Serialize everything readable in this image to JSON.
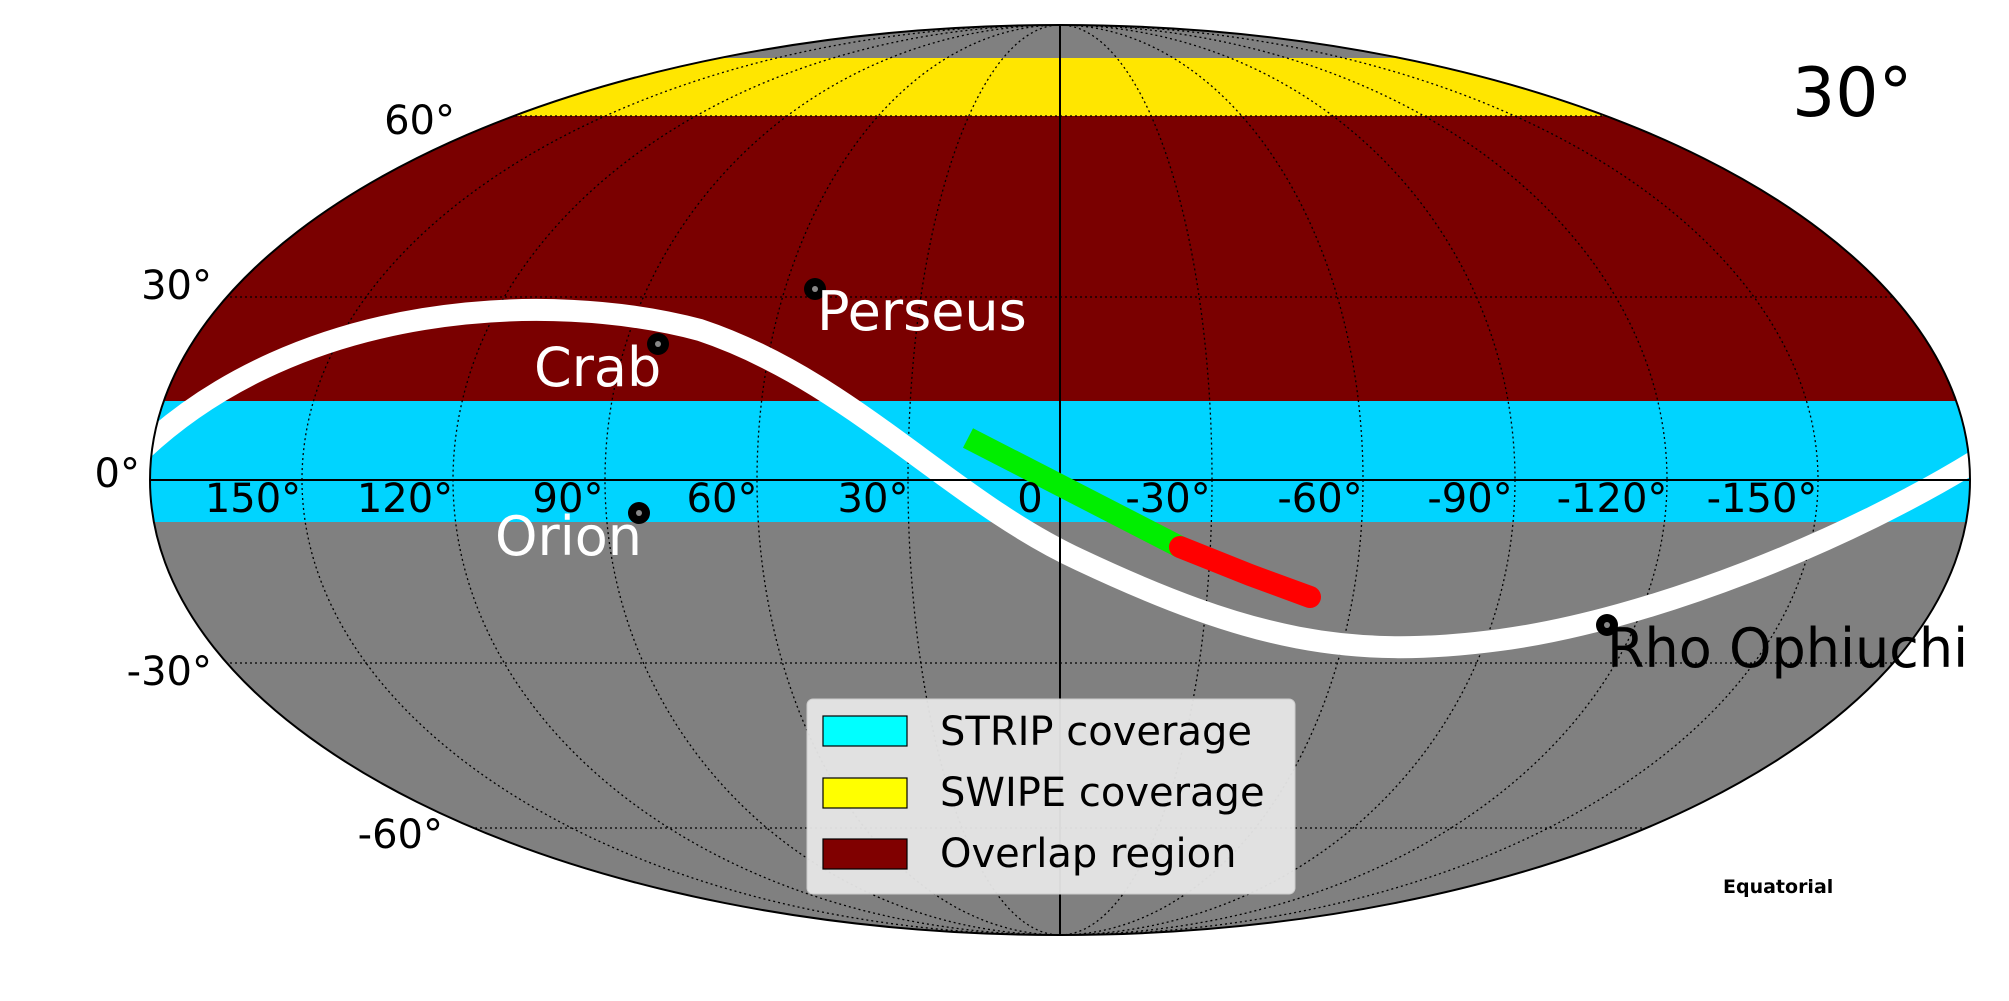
{
  "map": {
    "corner_label": "30°",
    "projection_label": "Equatorial",
    "colors": {
      "background_sky": "#808080",
      "strip": "#00d4ff",
      "swipe": "#ffe600",
      "overlap": "#7a0000",
      "galactic_plane": "#ffffff",
      "track_green": "#00ee00",
      "track_red": "#ff0000",
      "source_marker": "#000000",
      "grid": "#000000"
    },
    "lat_labels": [
      "60°",
      "30°",
      "0°",
      "-30°",
      "-60°"
    ],
    "lon_labels": [
      "150°",
      "120°",
      "90°",
      "60°",
      "30°",
      "0",
      "-30°",
      "-60°",
      "-90°",
      "-120°",
      "-150°"
    ],
    "sources": [
      {
        "name": "Perseus",
        "color": "#ffffff"
      },
      {
        "name": "Crab",
        "color": "#ffffff"
      },
      {
        "name": "Orion",
        "color": "#ffffff"
      },
      {
        "name": "Rho Ophiuchi",
        "color": "#000000"
      }
    ],
    "legend": [
      {
        "label": "STRIP coverage",
        "color": "#00ffff"
      },
      {
        "label": "SWIPE coverage",
        "color": "#ffff00"
      },
      {
        "label": "Overlap region",
        "color": "#800000"
      }
    ]
  }
}
